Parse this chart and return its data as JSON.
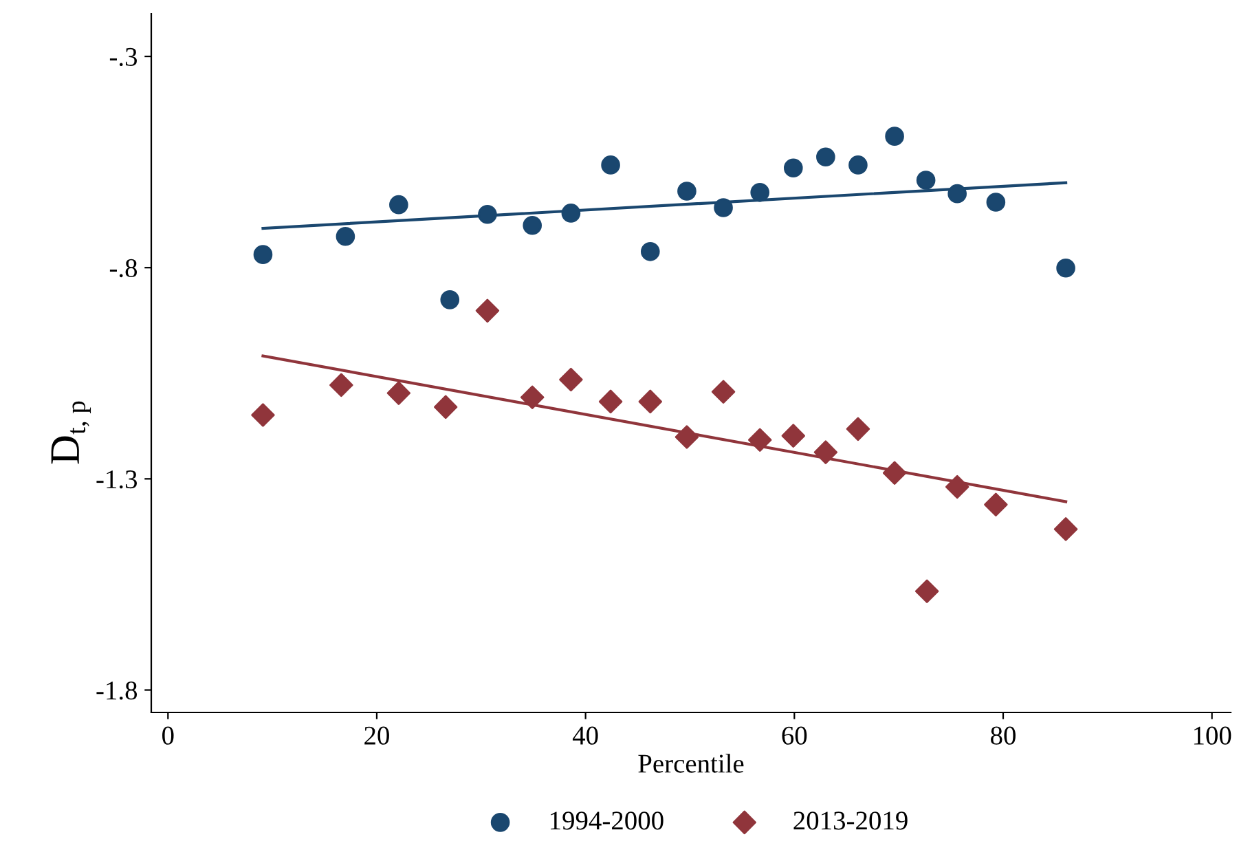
{
  "chart_data": {
    "type": "scatter",
    "xlabel": "Percentile",
    "ylabel": "D$_{t, p}$",
    "xlim": [
      -1.6,
      101.8
    ],
    "ylim": [
      -1.853,
      -0.199
    ],
    "xticks": [
      0,
      20,
      40,
      60,
      80,
      100
    ],
    "yticks": [
      {
        "value": -0.3,
        "label": "-.3"
      },
      {
        "value": -0.8,
        "label": "-.8"
      },
      {
        "value": -1.3,
        "label": "-1.3"
      },
      {
        "value": -1.8,
        "label": "-1.8"
      }
    ],
    "grid": false,
    "legend": "bottom",
    "series": [
      {
        "name": "1994-2000",
        "color": "#1a476f",
        "marker": "circle",
        "x": [
          9.1,
          17.0,
          22.1,
          27.0,
          30.6,
          34.9,
          38.6,
          42.4,
          46.2,
          49.7,
          53.2,
          56.7,
          59.9,
          63.0,
          66.1,
          69.6,
          72.6,
          75.6,
          79.3,
          86.0
        ],
        "values": [
          -0.769,
          -0.726,
          -0.651,
          -0.876,
          -0.674,
          -0.7,
          -0.671,
          -0.557,
          -0.762,
          -0.619,
          -0.658,
          -0.622,
          -0.564,
          -0.538,
          -0.557,
          -0.489,
          -0.593,
          -0.625,
          -0.645,
          -0.801
        ]
      },
      {
        "name": "2013-2019",
        "color": "#90353b",
        "marker": "diamond",
        "x": [
          9.1,
          16.6,
          22.1,
          26.6,
          30.6,
          34.9,
          38.6,
          42.4,
          46.2,
          49.7,
          53.2,
          56.7,
          59.9,
          63.0,
          66.1,
          69.6,
          72.7,
          75.6,
          79.3,
          86.0
        ],
        "values": [
          -1.149,
          -1.078,
          -1.097,
          -1.13,
          -0.902,
          -1.107,
          -1.065,
          -1.117,
          -1.117,
          -1.201,
          -1.094,
          -1.208,
          -1.198,
          -1.237,
          -1.182,
          -1.286,
          -1.566,
          -1.319,
          -1.361,
          -1.419
        ]
      },
      {
        "type": "line",
        "color": "#1a476f",
        "marker": "none",
        "line_style": "solid",
        "x": [
          9.1,
          86.0
        ],
        "values": [
          -0.707,
          -0.599
        ]
      },
      {
        "type": "line",
        "color": "#90353b",
        "marker": "none",
        "line_style": "solid",
        "x": [
          9.1,
          86.0
        ],
        "values": [
          -1.009,
          -1.354
        ]
      }
    ]
  }
}
